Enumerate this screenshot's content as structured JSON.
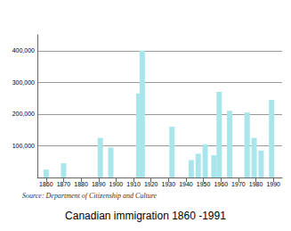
{
  "chart_data": {
    "type": "bar",
    "title": "Canadian immigration 1860 -1991",
    "source": "Source: Department of Citizenship and Culture",
    "x": [
      1860,
      1870,
      1891,
      1897,
      1913,
      1915,
      1932,
      1943,
      1947,
      1951,
      1956,
      1959,
      1965,
      1975,
      1979,
      1983,
      1989
    ],
    "values": [
      25000,
      45000,
      125000,
      95000,
      265000,
      400000,
      160000,
      55000,
      75000,
      105000,
      70000,
      270000,
      210000,
      205000,
      125000,
      85000,
      245000
    ],
    "color": "#a8e6ec",
    "xlim": [
      1855,
      1995
    ],
    "xticks": [
      1860,
      1870,
      1880,
      1890,
      1900,
      1910,
      1920,
      1930,
      1940,
      1950,
      1960,
      1970,
      1980,
      1990
    ],
    "ylim": [
      0,
      450000
    ],
    "yticks": [
      {
        "value": 100000,
        "label": "100,000"
      },
      {
        "value": 200000,
        "label": "200,000"
      },
      {
        "value": 300000,
        "label": "300,000"
      },
      {
        "value": 400000,
        "label": "400,000"
      }
    ],
    "grid": true
  }
}
